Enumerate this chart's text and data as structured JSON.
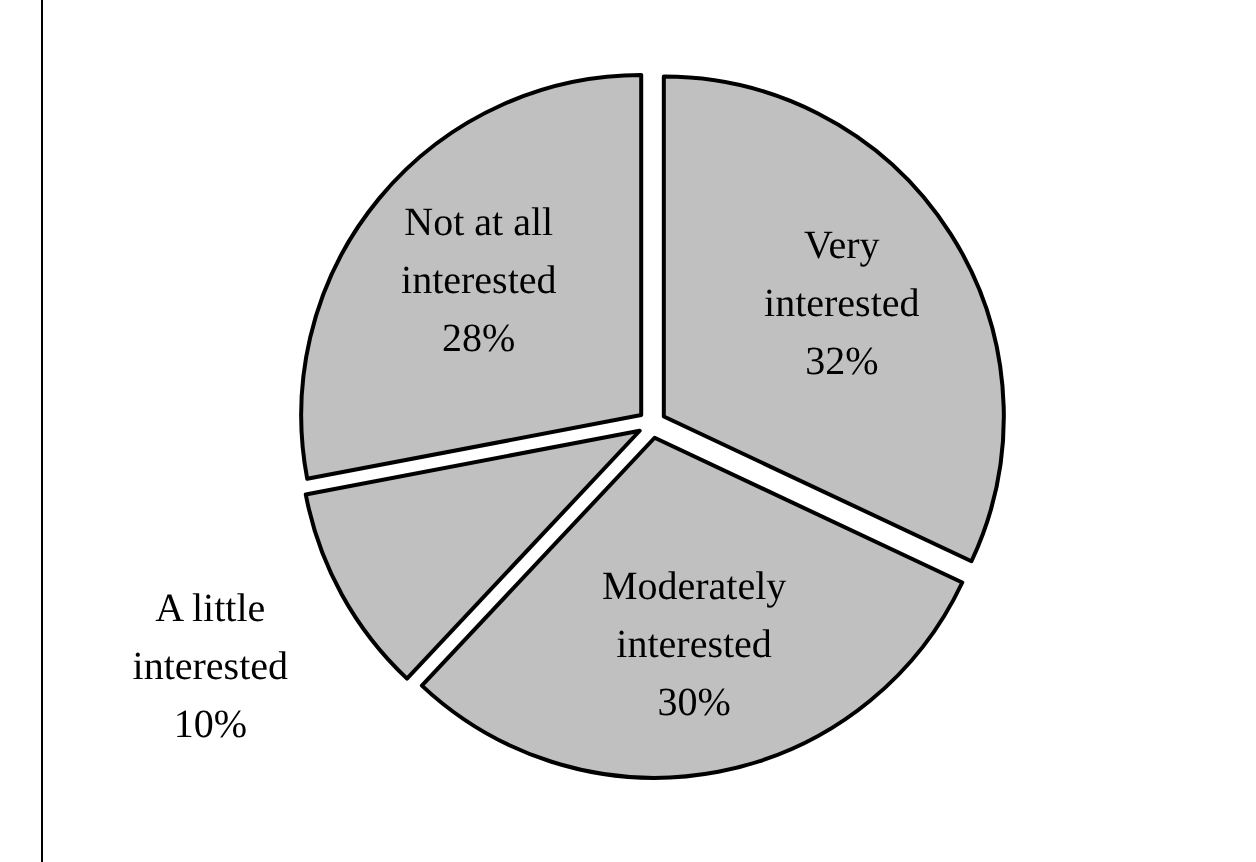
{
  "chart_data": {
    "type": "pie",
    "categories": [
      "Very interested",
      "Moderately interested",
      "A little interested",
      "Not at all interested"
    ],
    "values": [
      32,
      30,
      10,
      28
    ],
    "colors": [
      "#c0c0c0",
      "#c0c0c0",
      "#c0c0c0",
      "#c0c0c0"
    ],
    "value_labels": [
      "32%",
      "30%",
      "10%",
      "28%"
    ]
  }
}
